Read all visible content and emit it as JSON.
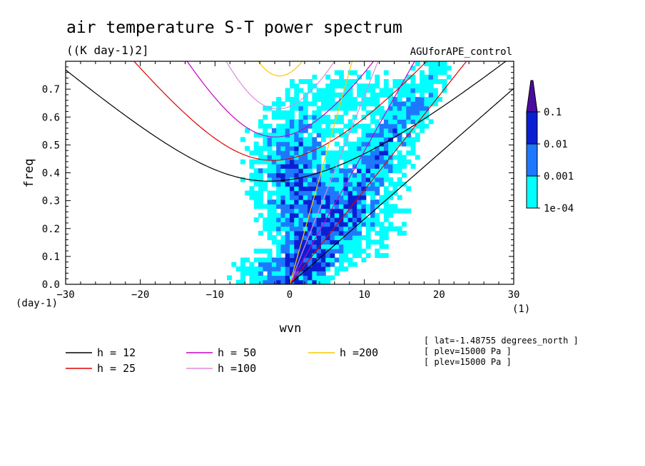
{
  "chart_data": {
    "type": "line",
    "title": "air temperature S-T power spectrum",
    "units": "((K day-1)2]",
    "experiment": "AGUforAPE_control",
    "xlabel": "wvn",
    "ylabel": "freq",
    "x_unit": "(1)",
    "y_unit": "(day-1)",
    "xlim": [
      -30,
      30
    ],
    "ylim": [
      0,
      0.8
    ],
    "x_ticks": [
      "-30",
      "-20",
      "-10",
      "0",
      "10",
      "20",
      "30"
    ],
    "y_ticks": [
      "0.0",
      "0.1",
      "0.2",
      "0.3",
      "0.4",
      "0.5",
      "0.6",
      "0.7"
    ],
    "colorbar": {
      "labels": [
        "0.1",
        "0.01",
        "0.001",
        "1e-04"
      ],
      "colors": [
        "#4b0c9e",
        "#0a1fd2",
        "#1e78ff",
        "#00ffff"
      ]
    },
    "series": [
      {
        "name": "h = 12",
        "color": "#000000",
        "h": 12
      },
      {
        "name": "h = 25",
        "color": "#e00000",
        "h": 25
      },
      {
        "name": "h = 50",
        "color": "#c800c8",
        "h": 50
      },
      {
        "name": "h =100",
        "color": "#dc8cdc",
        "h": 100
      },
      {
        "name": "h =200",
        "color": "#ffc800",
        "h": 200
      }
    ],
    "info_lines": [
      "[ lat=-1.48755 degrees_north ]",
      "[ plev=15000 Pa ]",
      "[ plev=15000 Pa ]"
    ],
    "contour_fill_color": "#00ffff"
  }
}
